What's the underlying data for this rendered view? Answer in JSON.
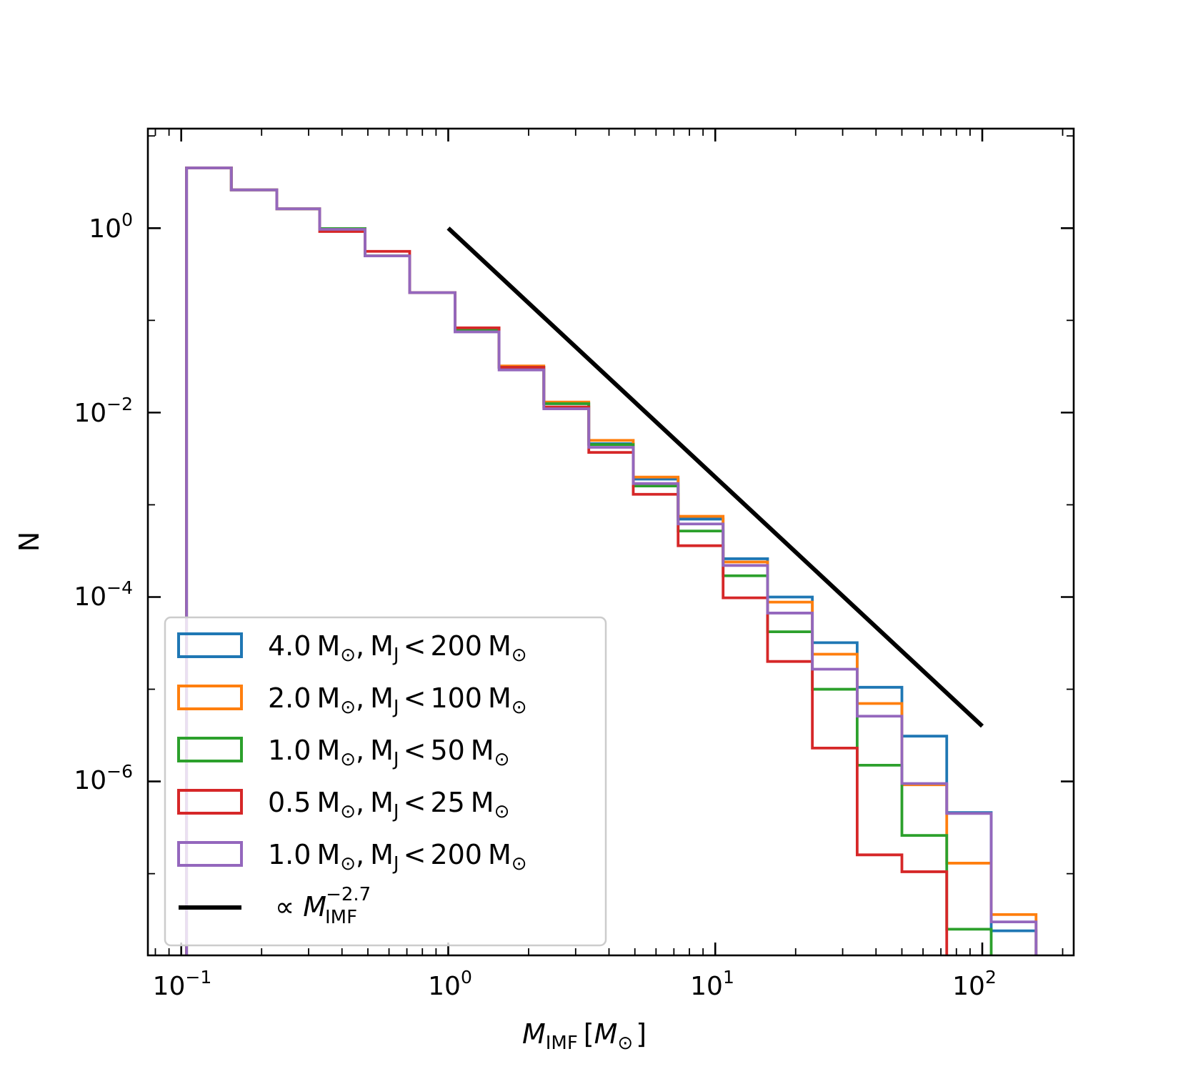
{
  "chart_data": {
    "type": "histogram",
    "xscale": "log",
    "yscale": "log",
    "xlim": [
      0.075,
      220
    ],
    "ylim": [
      1.3e-08,
      12
    ],
    "xlabel": "M_IMF [M_⊙]",
    "ylabel": "N",
    "x_ticks": [
      {
        "value": 0.1,
        "base": "10",
        "exp": "−1"
      },
      {
        "value": 1,
        "base": "10",
        "exp": "0"
      },
      {
        "value": 10,
        "base": "10",
        "exp": "1"
      },
      {
        "value": 100,
        "base": "10",
        "exp": "2"
      }
    ],
    "y_ticks": [
      {
        "value": 1,
        "base": "10",
        "exp": "0"
      },
      {
        "value": 0.01,
        "base": "10",
        "exp": "−2"
      },
      {
        "value": 0.0001,
        "base": "10",
        "exp": "−4"
      },
      {
        "value": 1e-06,
        "base": "10",
        "exp": "−6"
      }
    ],
    "bin_edges": [
      0.1047,
      0.154,
      0.228,
      0.33,
      0.488,
      0.717,
      1.06,
      1.55,
      2.28,
      3.36,
      4.93,
      7.26,
      10.7,
      15.7,
      23.1,
      34.0,
      50.0,
      73.6,
      108.0,
      159.0
    ],
    "series": [
      {
        "name": "4.0 M⊙, MJ < 200 M⊙",
        "color": "#1f77b4",
        "values": [
          4.5,
          2.6,
          1.62,
          0.99,
          0.5,
          0.2,
          0.079,
          0.031,
          0.0125,
          0.0046,
          0.0019,
          0.0007,
          0.00026,
          0.0001,
          3.2e-05,
          1.05e-05,
          3.1e-06,
          4.6e-07,
          2.4e-08
        ]
      },
      {
        "name": "2.0 M⊙, MJ < 100 M⊙",
        "color": "#ff7f0e",
        "values": [
          4.5,
          2.6,
          1.62,
          0.99,
          0.5,
          0.2,
          0.08,
          0.032,
          0.013,
          0.005,
          0.002,
          0.00075,
          0.00024,
          8.8e-05,
          2.4e-05,
          7e-06,
          9.2e-07,
          1.3e-07,
          3.6e-08
        ]
      },
      {
        "name": "1.0 M⊙, MJ < 50 M⊙",
        "color": "#2ca02c",
        "values": [
          4.5,
          2.6,
          1.62,
          0.99,
          0.5,
          0.2,
          0.079,
          0.031,
          0.0125,
          0.0045,
          0.0016,
          0.00052,
          0.00017,
          4.2e-05,
          1e-05,
          1.5e-06,
          2.6e-07,
          2.5e-08,
          5e-09
        ]
      },
      {
        "name": "0.5 M⊙, MJ < 25 M⊙",
        "color": "#d62728",
        "values": [
          4.5,
          2.6,
          1.62,
          0.92,
          0.56,
          0.2,
          0.083,
          0.031,
          0.0115,
          0.0037,
          0.0013,
          0.00036,
          9.8e-05,
          2e-05,
          2.3e-06,
          1.6e-07,
          1.05e-07,
          5e-09,
          5e-09
        ]
      },
      {
        "name": "1.0 M⊙, MJ < 200 M⊙",
        "color": "#9467bd",
        "values": [
          4.5,
          2.6,
          1.62,
          0.97,
          0.5,
          0.2,
          0.075,
          0.029,
          0.011,
          0.0042,
          0.0017,
          0.00062,
          0.00022,
          6.7e-05,
          1.65e-05,
          5.1e-06,
          9.5e-07,
          4.5e-07,
          3e-08
        ]
      }
    ],
    "reference_line": {
      "name": "∝ M_IMF^−2.7",
      "label_main": "∝ M",
      "label_sub": "IMF",
      "label_sup": "−2.7",
      "color": "#000000",
      "x": [
        1,
        100
      ],
      "y": [
        1.0,
        3.98e-06
      ]
    },
    "legend": {
      "location": "lower-left",
      "entries": [
        {
          "mass": "4.0",
          "mj": "200"
        },
        {
          "mass": "2.0",
          "mj": "100"
        },
        {
          "mass": "1.0",
          "mj": "50"
        },
        {
          "mass": "0.5",
          "mj": "25"
        },
        {
          "mass": "1.0",
          "mj": "200"
        }
      ],
      "unit_main": "M",
      "unit_sub": "⊙",
      "mj_main": "M",
      "mj_sub": "J",
      "comma": ",",
      "less_than": "<"
    },
    "xlabel_parts": {
      "main": "M",
      "sub": "IMF",
      "open": "[",
      "unit": "M",
      "unit_sub": "⊙",
      "close": "]"
    }
  }
}
